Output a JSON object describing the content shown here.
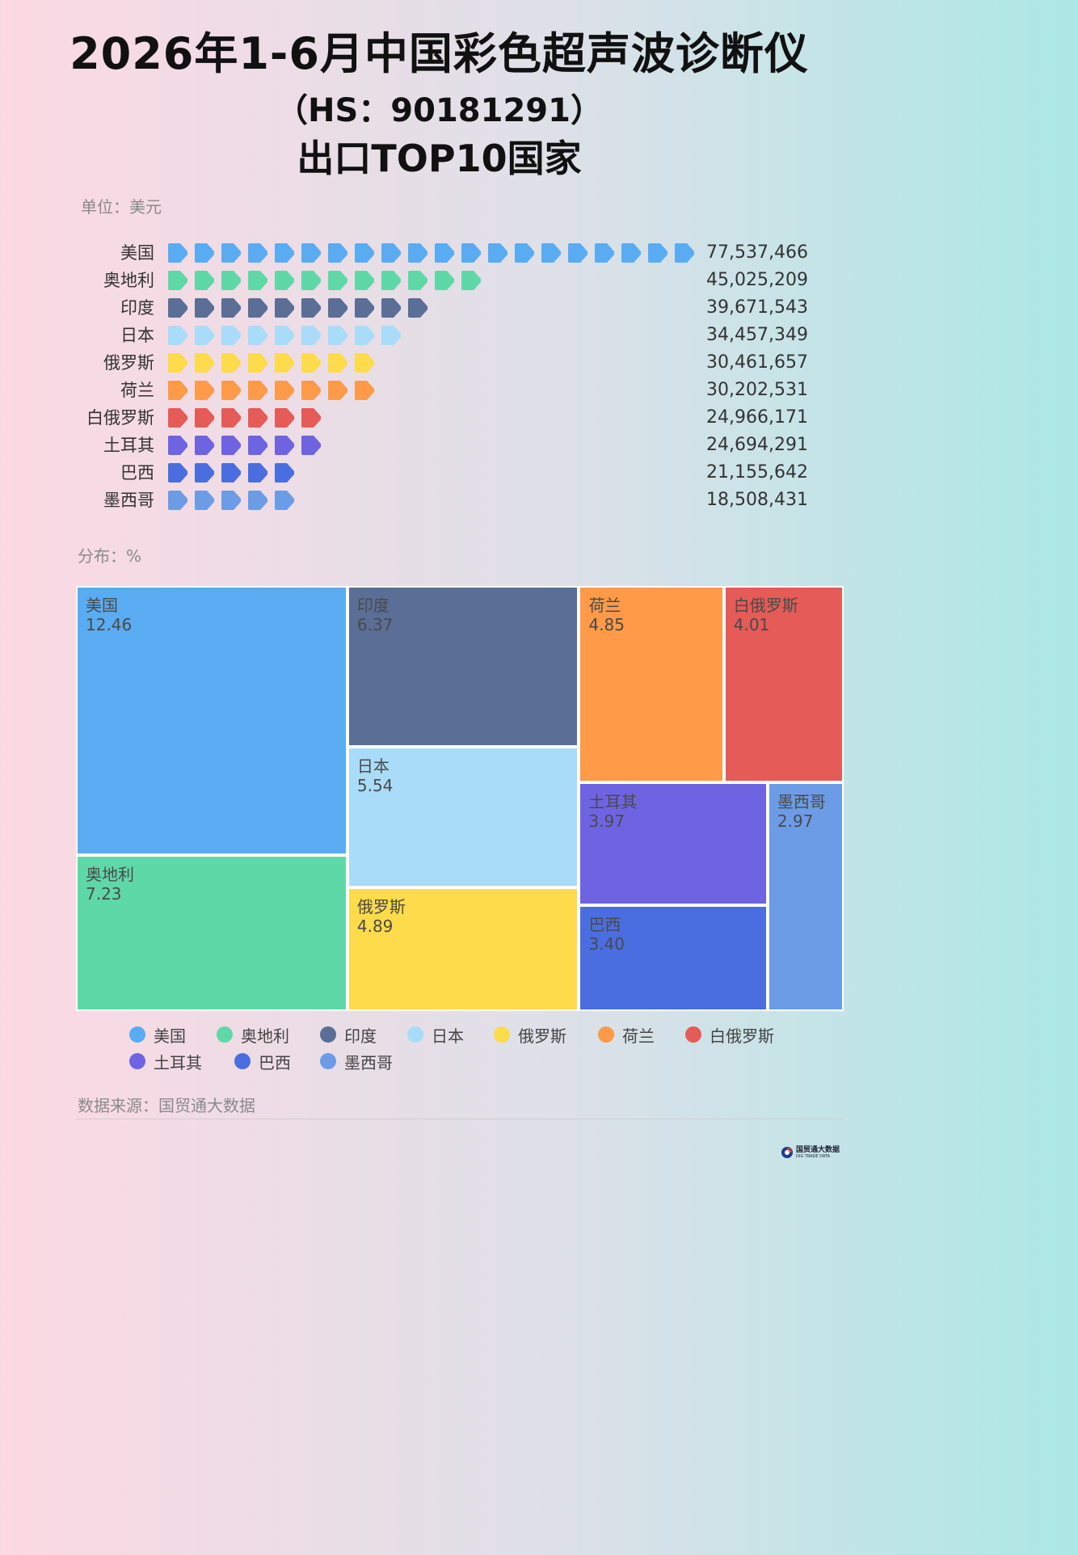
{
  "title": {
    "line1": "2026年1-6月中国彩色超声波诊断仪",
    "line2": "（HS：90181291）",
    "line3": "出口TOP10国家"
  },
  "unit_label": "单位：美元",
  "distribution_label": "分布：%",
  "source": "数据来源：国贸通大数据",
  "logo": {
    "text": "国贸通大数据",
    "sub": "DIG TRADE DATA"
  },
  "chart_data": [
    {
      "type": "bar",
      "style": "pictorial",
      "unit": "美元",
      "categories": [
        "美国",
        "奥地利",
        "印度",
        "日本",
        "俄罗斯",
        "荷兰",
        "白俄罗斯",
        "土耳其",
        "巴西",
        "墨西哥"
      ],
      "values": [
        77537466,
        45025209,
        39671543,
        34457349,
        30461657,
        30202531,
        24966171,
        24694291,
        21155642,
        18508431
      ],
      "value_labels": [
        "77,537,466",
        "45,025,209",
        "39,671,543",
        "34,457,349",
        "30,461,657",
        "30,202,531",
        "24,966,171",
        "24,694,291",
        "21,155,642",
        "18,508,431"
      ],
      "icon_counts": [
        20,
        12,
        10,
        9,
        8,
        8,
        6,
        6,
        5,
        5
      ],
      "icon": "arrow-tag-icon",
      "colors": [
        "#5aacf2",
        "#5fd8a8",
        "#5a6e96",
        "#a8dcf8",
        "#fddb4a",
        "#fe9a48",
        "#e55b58",
        "#6e64e2",
        "#4a6ee0",
        "#6c9ce6"
      ]
    },
    {
      "type": "treemap",
      "unit": "%",
      "categories": [
        "美国",
        "奥地利",
        "印度",
        "日本",
        "俄罗斯",
        "荷兰",
        "白俄罗斯",
        "土耳其",
        "巴西",
        "墨西哥"
      ],
      "values": [
        12.46,
        7.23,
        6.37,
        5.54,
        4.89,
        4.85,
        4.01,
        3.97,
        3.4,
        2.97
      ],
      "value_labels": [
        "12.46",
        "7.23",
        "6.37",
        "5.54",
        "4.89",
        "4.85",
        "4.01",
        "3.97",
        "3.40",
        "2.97"
      ],
      "colors": [
        "#5aacf2",
        "#5fd8a8",
        "#5a6e96",
        "#a8dcf8",
        "#fddb4a",
        "#fe9a48",
        "#e55b58",
        "#6e64e2",
        "#4a6ee0",
        "#6c9ce6"
      ]
    }
  ],
  "legend": [
    {
      "label": "美国",
      "color": "#5aacf2"
    },
    {
      "label": "奥地利",
      "color": "#5fd8a8"
    },
    {
      "label": "印度",
      "color": "#5a6e96"
    },
    {
      "label": "日本",
      "color": "#a8dcf8"
    },
    {
      "label": "俄罗斯",
      "color": "#fddb4a"
    },
    {
      "label": "荷兰",
      "color": "#fe9a48"
    },
    {
      "label": "白俄罗斯",
      "color": "#e55b58"
    },
    {
      "label": "土耳其",
      "color": "#6e64e2"
    },
    {
      "label": "巴西",
      "color": "#4a6ee0"
    },
    {
      "label": "墨西哥",
      "color": "#6c9ce6"
    }
  ]
}
